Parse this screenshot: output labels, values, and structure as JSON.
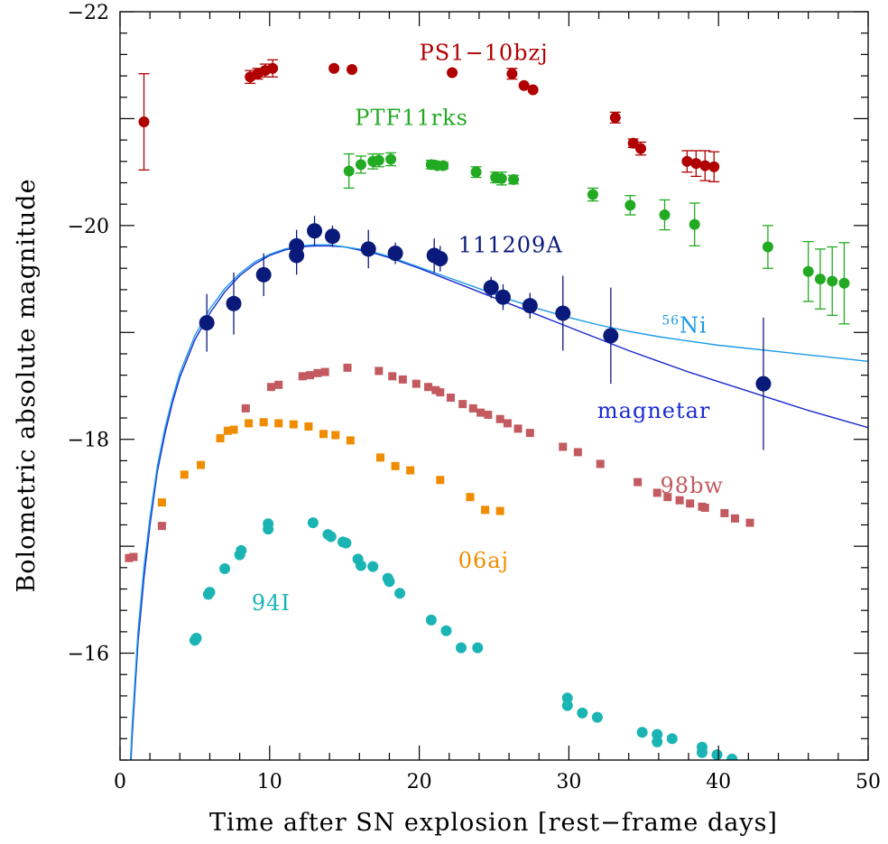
{
  "chart_data": {
    "type": "scatter",
    "xlabel": "Time after SN explosion [rest−frame days]",
    "ylabel": "Bolometric absolute magnitude",
    "xlim": [
      0,
      50
    ],
    "ylim": [
      -15,
      -22
    ],
    "y_inverted": true,
    "grid": false,
    "x_tick_labels": [
      "0",
      "10",
      "20",
      "30",
      "40",
      "50"
    ],
    "y_tick_labels": [
      "−22",
      "−20",
      "−18",
      "−16"
    ],
    "series": [
      {
        "name": "PS1−10bzj",
        "color": "#b00000",
        "marker": "circle",
        "points": [
          {
            "x": 1.6,
            "y": -20.97,
            "err": 0.45
          },
          {
            "x": 8.7,
            "y": -21.39,
            "err": 0.06
          },
          {
            "x": 9.2,
            "y": -21.42,
            "err": 0.05
          },
          {
            "x": 9.7,
            "y": -21.45,
            "err": 0.06
          },
          {
            "x": 10.2,
            "y": -21.47,
            "err": 0.08
          },
          {
            "x": 14.3,
            "y": -21.47,
            "err": 0.0
          },
          {
            "x": 15.5,
            "y": -21.46,
            "err": 0.0
          },
          {
            "x": 22.2,
            "y": -21.43,
            "err": 0.0
          },
          {
            "x": 26.2,
            "y": -21.42,
            "err": 0.05
          },
          {
            "x": 27.0,
            "y": -21.31,
            "err": 0.0
          },
          {
            "x": 27.6,
            "y": -21.27,
            "err": 0.0
          },
          {
            "x": 33.1,
            "y": -21.01,
            "err": 0.05
          },
          {
            "x": 34.3,
            "y": -20.77,
            "err": 0.04
          },
          {
            "x": 34.8,
            "y": -20.72,
            "err": 0.06
          },
          {
            "x": 37.9,
            "y": -20.6,
            "err": 0.1
          },
          {
            "x": 38.5,
            "y": -20.58,
            "err": 0.12
          },
          {
            "x": 39.1,
            "y": -20.56,
            "err": 0.14
          },
          {
            "x": 39.7,
            "y": -20.55,
            "err": 0.14
          }
        ]
      },
      {
        "name": "PTF11rks",
        "color": "#22aa22",
        "marker": "circle",
        "points": [
          {
            "x": 15.3,
            "y": -20.51,
            "err": 0.16
          },
          {
            "x": 16.1,
            "y": -20.57,
            "err": 0.08
          },
          {
            "x": 16.9,
            "y": -20.6,
            "err": 0.07
          },
          {
            "x": 17.3,
            "y": -20.61,
            "err": 0.06
          },
          {
            "x": 18.1,
            "y": -20.62,
            "err": 0.06
          },
          {
            "x": 20.8,
            "y": -20.57,
            "err": 0.04
          },
          {
            "x": 21.2,
            "y": -20.56,
            "err": 0.03
          },
          {
            "x": 21.6,
            "y": -20.56,
            "err": 0.03
          },
          {
            "x": 23.8,
            "y": -20.5,
            "err": 0.05
          },
          {
            "x": 25.1,
            "y": -20.45,
            "err": 0.05
          },
          {
            "x": 25.5,
            "y": -20.44,
            "err": 0.06
          },
          {
            "x": 26.3,
            "y": -20.43,
            "err": 0.04
          },
          {
            "x": 31.6,
            "y": -20.29,
            "err": 0.06
          },
          {
            "x": 34.1,
            "y": -20.19,
            "err": 0.09
          },
          {
            "x": 36.4,
            "y": -20.1,
            "err": 0.14
          },
          {
            "x": 38.4,
            "y": -20.01,
            "err": 0.2
          },
          {
            "x": 43.3,
            "y": -19.8,
            "err": 0.2
          },
          {
            "x": 46.0,
            "y": -19.57,
            "err": 0.28
          },
          {
            "x": 46.8,
            "y": -19.5,
            "err": 0.28
          },
          {
            "x": 47.6,
            "y": -19.48,
            "err": 0.32
          },
          {
            "x": 48.4,
            "y": -19.46,
            "err": 0.38
          }
        ]
      },
      {
        "name": "111209A",
        "color": "#0a1a7a",
        "marker": "circle-large",
        "points": [
          {
            "x": 5.8,
            "y": -19.09,
            "err": 0.27
          },
          {
            "x": 7.6,
            "y": -19.27,
            "err": 0.29
          },
          {
            "x": 9.6,
            "y": -19.54,
            "err": 0.2
          },
          {
            "x": 11.8,
            "y": -19.81,
            "err": 0.15
          },
          {
            "x": 11.8,
            "y": -19.72,
            "err": 0.18
          },
          {
            "x": 13.0,
            "y": -19.95,
            "err": 0.14
          },
          {
            "x": 14.2,
            "y": -19.9,
            "err": 0.1
          },
          {
            "x": 16.6,
            "y": -19.78,
            "err": 0.18
          },
          {
            "x": 18.4,
            "y": -19.74,
            "err": 0.1
          },
          {
            "x": 21.0,
            "y": -19.72,
            "err": 0.16
          },
          {
            "x": 21.4,
            "y": -19.69,
            "err": 0.12
          },
          {
            "x": 24.8,
            "y": -19.42,
            "err": 0.1
          },
          {
            "x": 25.6,
            "y": -19.33,
            "err": 0.12
          },
          {
            "x": 27.4,
            "y": -19.25,
            "err": 0.12
          },
          {
            "x": 29.6,
            "y": -19.18,
            "err": 0.35
          },
          {
            "x": 32.8,
            "y": -18.97,
            "err": 0.45
          },
          {
            "x": 43.0,
            "y": -18.52,
            "err": 0.62
          }
        ]
      },
      {
        "name": "98bw",
        "color": "#c25a60",
        "marker": "square",
        "points": [
          {
            "x": 0.6,
            "y": -16.89
          },
          {
            "x": 0.9,
            "y": -16.9
          },
          {
            "x": 2.8,
            "y": -17.19
          },
          {
            "x": 8.4,
            "y": -18.29
          },
          {
            "x": 10.1,
            "y": -18.49
          },
          {
            "x": 10.6,
            "y": -18.51
          },
          {
            "x": 12.2,
            "y": -18.59
          },
          {
            "x": 12.7,
            "y": -18.6
          },
          {
            "x": 13.2,
            "y": -18.62
          },
          {
            "x": 13.7,
            "y": -18.63
          },
          {
            "x": 15.2,
            "y": -18.67
          },
          {
            "x": 17.3,
            "y": -18.64
          },
          {
            "x": 18.2,
            "y": -18.59
          },
          {
            "x": 18.9,
            "y": -18.56
          },
          {
            "x": 19.8,
            "y": -18.52
          },
          {
            "x": 20.6,
            "y": -18.49
          },
          {
            "x": 21.1,
            "y": -18.46
          },
          {
            "x": 21.4,
            "y": -18.44
          },
          {
            "x": 22.1,
            "y": -18.39
          },
          {
            "x": 22.9,
            "y": -18.33
          },
          {
            "x": 23.6,
            "y": -18.29
          },
          {
            "x": 24.1,
            "y": -18.25
          },
          {
            "x": 24.6,
            "y": -18.23
          },
          {
            "x": 25.4,
            "y": -18.19
          },
          {
            "x": 25.9,
            "y": -18.15
          },
          {
            "x": 26.6,
            "y": -18.1
          },
          {
            "x": 27.4,
            "y": -18.06
          },
          {
            "x": 29.6,
            "y": -17.93
          },
          {
            "x": 30.6,
            "y": -17.88
          },
          {
            "x": 32.1,
            "y": -17.77
          },
          {
            "x": 34.6,
            "y": -17.6
          },
          {
            "x": 35.9,
            "y": -17.5
          },
          {
            "x": 36.6,
            "y": -17.46
          },
          {
            "x": 37.4,
            "y": -17.43
          },
          {
            "x": 38.1,
            "y": -17.4
          },
          {
            "x": 38.9,
            "y": -17.37
          },
          {
            "x": 39.1,
            "y": -17.36
          },
          {
            "x": 40.4,
            "y": -17.31
          },
          {
            "x": 41.1,
            "y": -17.26
          },
          {
            "x": 42.1,
            "y": -17.22
          }
        ]
      },
      {
        "name": "06aj",
        "color": "#f08c00",
        "marker": "square",
        "points": [
          {
            "x": 2.8,
            "y": -17.41
          },
          {
            "x": 4.3,
            "y": -17.67
          },
          {
            "x": 5.4,
            "y": -17.76
          },
          {
            "x": 6.7,
            "y": -18.01
          },
          {
            "x": 7.2,
            "y": -18.08
          },
          {
            "x": 7.6,
            "y": -18.09
          },
          {
            "x": 8.6,
            "y": -18.15
          },
          {
            "x": 9.6,
            "y": -18.16
          },
          {
            "x": 10.6,
            "y": -18.15
          },
          {
            "x": 11.6,
            "y": -18.14
          },
          {
            "x": 12.6,
            "y": -18.12
          },
          {
            "x": 13.6,
            "y": -18.05
          },
          {
            "x": 14.4,
            "y": -18.04
          },
          {
            "x": 15.4,
            "y": -17.99
          },
          {
            "x": 17.4,
            "y": -17.83
          },
          {
            "x": 18.4,
            "y": -17.75
          },
          {
            "x": 19.4,
            "y": -17.71
          },
          {
            "x": 21.4,
            "y": -17.62
          },
          {
            "x": 23.4,
            "y": -17.46
          },
          {
            "x": 24.4,
            "y": -17.34
          },
          {
            "x": 25.4,
            "y": -17.33
          }
        ]
      },
      {
        "name": "94I",
        "color": "#1ab4b4",
        "marker": "circle",
        "points": [
          {
            "x": 5.0,
            "y": -16.12
          },
          {
            "x": 5.1,
            "y": -16.14
          },
          {
            "x": 5.9,
            "y": -16.55
          },
          {
            "x": 6.0,
            "y": -16.57
          },
          {
            "x": 7.0,
            "y": -16.79
          },
          {
            "x": 8.0,
            "y": -16.92
          },
          {
            "x": 8.1,
            "y": -16.96
          },
          {
            "x": 9.9,
            "y": -17.16
          },
          {
            "x": 9.9,
            "y": -17.21
          },
          {
            "x": 12.9,
            "y": -17.22
          },
          {
            "x": 13.9,
            "y": -17.11
          },
          {
            "x": 14.1,
            "y": -17.09
          },
          {
            "x": 14.9,
            "y": -17.04
          },
          {
            "x": 15.1,
            "y": -17.03
          },
          {
            "x": 15.9,
            "y": -16.88
          },
          {
            "x": 16.1,
            "y": -16.82
          },
          {
            "x": 16.9,
            "y": -16.81
          },
          {
            "x": 17.9,
            "y": -16.7
          },
          {
            "x": 18.0,
            "y": -16.67
          },
          {
            "x": 18.7,
            "y": -16.56
          },
          {
            "x": 20.8,
            "y": -16.31
          },
          {
            "x": 21.8,
            "y": -16.21
          },
          {
            "x": 22.8,
            "y": -16.05
          },
          {
            "x": 23.9,
            "y": -16.05
          },
          {
            "x": 29.9,
            "y": -15.58
          },
          {
            "x": 29.9,
            "y": -15.51
          },
          {
            "x": 30.9,
            "y": -15.44
          },
          {
            "x": 31.9,
            "y": -15.4
          },
          {
            "x": 34.9,
            "y": -15.26
          },
          {
            "x": 35.9,
            "y": -15.24
          },
          {
            "x": 35.9,
            "y": -15.17
          },
          {
            "x": 36.9,
            "y": -15.2
          },
          {
            "x": 38.9,
            "y": -15.12
          },
          {
            "x": 38.9,
            "y": -15.07
          },
          {
            "x": 39.9,
            "y": -15.05
          },
          {
            "x": 40.9,
            "y": -15.01
          }
        ]
      }
    ],
    "models": [
      {
        "name": "magnetar",
        "color": "#1a2ad0",
        "x": [
          0.4,
          0.8,
          1.2,
          1.6,
          2,
          2.5,
          3,
          3.5,
          4,
          5,
          6,
          7,
          8,
          9,
          10,
          11,
          12,
          13,
          14,
          15,
          16,
          17,
          18,
          19,
          20,
          22,
          24,
          26,
          28,
          30,
          32,
          34,
          36,
          38,
          40,
          42,
          44,
          46,
          48,
          50
        ],
        "y": [
          -14.0,
          -15.2,
          -16.1,
          -16.7,
          -17.2,
          -17.7,
          -18.05,
          -18.34,
          -18.58,
          -18.93,
          -19.18,
          -19.38,
          -19.53,
          -19.64,
          -19.72,
          -19.77,
          -19.8,
          -19.81,
          -19.81,
          -19.8,
          -19.77,
          -19.74,
          -19.7,
          -19.65,
          -19.6,
          -19.49,
          -19.38,
          -19.27,
          -19.16,
          -19.05,
          -18.94,
          -18.83,
          -18.73,
          -18.63,
          -18.54,
          -18.45,
          -18.36,
          -18.27,
          -18.19,
          -18.11
        ]
      },
      {
        "name": "56Ni",
        "label_super": "56",
        "label_main": "Ni",
        "color": "#1c9ae8",
        "x": [
          0.4,
          0.8,
          1.2,
          1.6,
          2,
          2.5,
          3,
          3.5,
          4,
          5,
          6,
          7,
          8,
          9,
          10,
          11,
          12,
          13,
          14,
          15,
          16,
          17,
          18,
          19,
          20,
          22,
          24,
          26,
          28,
          30,
          32,
          34,
          36,
          38,
          40,
          42,
          44,
          46,
          48,
          50
        ],
        "y": [
          -14.1,
          -15.3,
          -16.2,
          -16.8,
          -17.27,
          -17.75,
          -18.1,
          -18.38,
          -18.62,
          -18.97,
          -19.22,
          -19.41,
          -19.55,
          -19.66,
          -19.73,
          -19.78,
          -19.81,
          -19.82,
          -19.82,
          -19.8,
          -19.78,
          -19.75,
          -19.71,
          -19.66,
          -19.61,
          -19.51,
          -19.41,
          -19.31,
          -19.22,
          -19.14,
          -19.07,
          -19.01,
          -18.96,
          -18.92,
          -18.88,
          -18.85,
          -18.82,
          -18.79,
          -18.76,
          -18.73
        ]
      }
    ]
  }
}
